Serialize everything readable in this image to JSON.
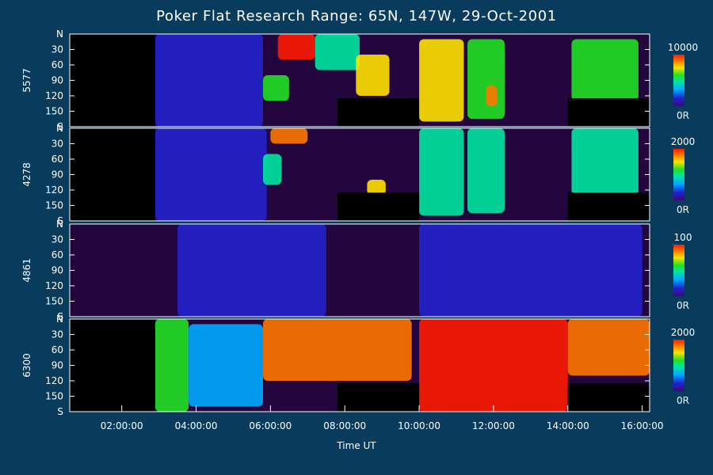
{
  "title": "Poker Flat Research Range: 65N, 147W, 29-Oct-2001",
  "xlabel": "Time UT",
  "xticks": [
    "02:00:00",
    "04:00:00",
    "06:00:00",
    "08:00:00",
    "10:00:00",
    "12:00:00",
    "14:00:00",
    "16:00:00"
  ],
  "panels": [
    {
      "label": "5577",
      "scale_max": "10000",
      "scale_min": "0R"
    },
    {
      "label": "4278",
      "scale_max": "2000",
      "scale_min": "0R"
    },
    {
      "label": "4861",
      "scale_max": "100",
      "scale_min": "0R"
    },
    {
      "label": "6300",
      "scale_max": "2000",
      "scale_min": "0R"
    }
  ],
  "yticks": [
    "N",
    "30",
    "60",
    "90",
    "120",
    "150",
    "S"
  ],
  "chart_data": {
    "type": "heatmap",
    "title": "Poker Flat Research Range: 65N, 147W, 29-Oct-2001",
    "xlabel": "Time UT",
    "x_ticks": [
      "02:00:00",
      "04:00:00",
      "06:00:00",
      "08:00:00",
      "10:00:00",
      "12:00:00",
      "14:00:00",
      "16:00:00"
    ],
    "x_range_hours": [
      0.6,
      16.2
    ],
    "y_ticks": [
      "N",
      "30",
      "60",
      "90",
      "120",
      "150",
      "S"
    ],
    "y_range": [
      0,
      180
    ],
    "colors": [
      "#000000",
      "#3b0a78",
      "#2222cc",
      "#00aaff",
      "#00e6a0",
      "#22e022",
      "#ffe100",
      "#ff7700",
      "#ff1a00"
    ],
    "series": [
      {
        "name": "5577",
        "scale": [
          0,
          10000
        ],
        "units": "R",
        "blobs": [
          {
            "t0": 2.9,
            "t1": 5.8,
            "y0": 0,
            "y1": 180,
            "v": 0.13
          },
          {
            "t0": 5.8,
            "t1": 6.5,
            "y0": 80,
            "y1": 130,
            "v": 0.55
          },
          {
            "t0": 6.2,
            "t1": 7.2,
            "y0": 0,
            "y1": 50,
            "v": 0.95
          },
          {
            "t0": 7.2,
            "t1": 8.4,
            "y0": 0,
            "y1": 70,
            "v": 0.45
          },
          {
            "t0": 8.3,
            "t1": 9.2,
            "y0": 40,
            "y1": 120,
            "v": 0.7
          },
          {
            "t0": 10.0,
            "t1": 11.2,
            "y0": 10,
            "y1": 170,
            "v": 0.7
          },
          {
            "t0": 11.3,
            "t1": 12.3,
            "y0": 10,
            "y1": 165,
            "v": 0.55
          },
          {
            "t0": 11.8,
            "t1": 12.1,
            "y0": 100,
            "y1": 140,
            "v": 0.9
          },
          {
            "t0": 14.1,
            "t1": 15.9,
            "y0": 10,
            "y1": 130,
            "v": 0.5
          }
        ],
        "masks": [
          {
            "t0": 0.6,
            "t1": 2.9,
            "y0": 0,
            "y1": 180
          },
          {
            "t0": 7.8,
            "t1": 10.0,
            "y0": 125,
            "y1": 180
          },
          {
            "t0": 14.0,
            "t1": 16.2,
            "y0": 125,
            "y1": 180
          }
        ]
      },
      {
        "name": "4278",
        "scale": [
          0,
          2000
        ],
        "units": "R",
        "blobs": [
          {
            "t0": 2.9,
            "t1": 5.9,
            "y0": 0,
            "y1": 180,
            "v": 0.12
          },
          {
            "t0": 6.0,
            "t1": 7.0,
            "y0": 0,
            "y1": 30,
            "v": 0.85
          },
          {
            "t0": 5.8,
            "t1": 6.3,
            "y0": 50,
            "y1": 110,
            "v": 0.4
          },
          {
            "t0": 8.6,
            "t1": 9.1,
            "y0": 100,
            "y1": 130,
            "v": 0.75
          },
          {
            "t0": 10.0,
            "t1": 11.2,
            "y0": 0,
            "y1": 170,
            "v": 0.45
          },
          {
            "t0": 11.3,
            "t1": 12.3,
            "y0": 0,
            "y1": 165,
            "v": 0.38
          },
          {
            "t0": 14.1,
            "t1": 15.9,
            "y0": 0,
            "y1": 130,
            "v": 0.38
          }
        ],
        "masks": [
          {
            "t0": 0.6,
            "t1": 2.9,
            "y0": 0,
            "y1": 180
          },
          {
            "t0": 7.8,
            "t1": 10.0,
            "y0": 125,
            "y1": 180
          },
          {
            "t0": 14.0,
            "t1": 16.2,
            "y0": 125,
            "y1": 180
          }
        ]
      },
      {
        "name": "4861",
        "scale": [
          0,
          100
        ],
        "units": "R",
        "blobs": [
          {
            "t0": 3.5,
            "t1": 7.5,
            "y0": 0,
            "y1": 180,
            "v": 0.2
          },
          {
            "t0": 10.0,
            "t1": 16.0,
            "y0": 0,
            "y1": 180,
            "v": 0.2
          }
        ],
        "masks": []
      },
      {
        "name": "6300",
        "scale": [
          0,
          2000
        ],
        "units": "R",
        "blobs": [
          {
            "t0": 2.9,
            "t1": 3.8,
            "y0": 0,
            "y1": 180,
            "v": 0.5
          },
          {
            "t0": 3.8,
            "t1": 5.8,
            "y0": 10,
            "y1": 170,
            "v": 0.35
          },
          {
            "t0": 5.8,
            "t1": 9.8,
            "y0": 0,
            "y1": 120,
            "v": 0.9
          },
          {
            "t0": 10.0,
            "t1": 14.0,
            "y0": 0,
            "y1": 180,
            "v": 0.95
          },
          {
            "t0": 14.0,
            "t1": 16.2,
            "y0": 0,
            "y1": 110,
            "v": 0.85
          }
        ],
        "masks": [
          {
            "t0": 0.6,
            "t1": 2.9,
            "y0": 0,
            "y1": 180
          },
          {
            "t0": 7.8,
            "t1": 10.0,
            "y0": 125,
            "y1": 180
          },
          {
            "t0": 14.0,
            "t1": 16.2,
            "y0": 125,
            "y1": 180
          }
        ]
      }
    ]
  }
}
